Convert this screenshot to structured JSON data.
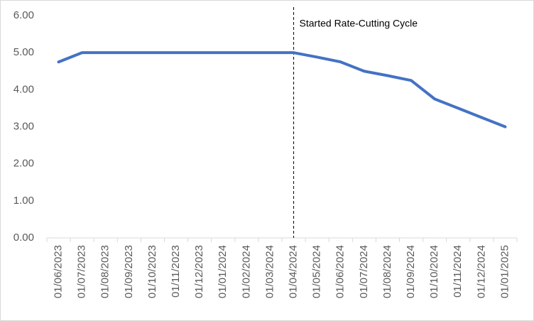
{
  "chart_data": {
    "type": "line",
    "categories": [
      "01/06/2023",
      "01/07/2023",
      "01/08/2023",
      "01/09/2023",
      "01/10/2023",
      "01/11/2023",
      "01/12/2023",
      "01/01/2024",
      "01/02/2024",
      "01/03/2024",
      "01/04/2024",
      "01/05/2024",
      "01/06/2024",
      "01/07/2024",
      "01/08/2024",
      "01/09/2024",
      "01/10/2024",
      "01/11/2024",
      "01/12/2024",
      "01/01/2025"
    ],
    "values": [
      4.75,
      5.0,
      5.0,
      5.0,
      5.0,
      5.0,
      5.0,
      5.0,
      5.0,
      5.0,
      5.0,
      4.88,
      4.75,
      4.5,
      4.38,
      4.25,
      3.75,
      3.5,
      3.25,
      3.0
    ],
    "color": "#4472c4",
    "ylim": [
      0,
      6
    ],
    "yticks": [
      {
        "value": 0,
        "label": "0.00"
      },
      {
        "value": 1,
        "label": "1.00"
      },
      {
        "value": 2,
        "label": "2.00"
      },
      {
        "value": 3,
        "label": "3.00"
      },
      {
        "value": 4,
        "label": "4.00"
      },
      {
        "value": 5,
        "label": "5.00"
      },
      {
        "value": 6,
        "label": "6.00"
      }
    ],
    "grid": false,
    "annotation": {
      "text": "Started Rate-Cutting Cycle",
      "x": "01/04/2024"
    }
  }
}
